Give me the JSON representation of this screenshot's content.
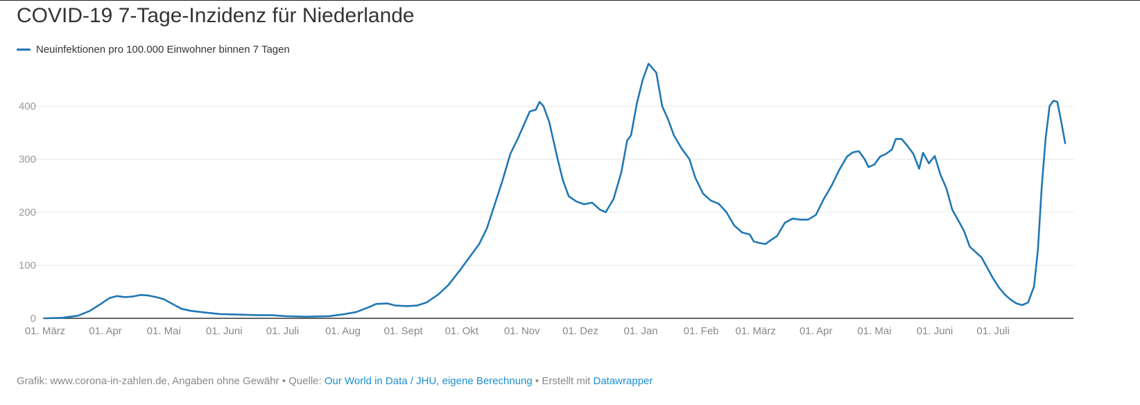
{
  "chart_data": {
    "type": "line",
    "title": "COVID-19 7-Tage-Inzidenz für Niederlande",
    "legend_placement": "top-left",
    "grid": true,
    "x_range": [
      "2020-03-01",
      "2021-07-28"
    ],
    "ylim": [
      0,
      480
    ],
    "y_ticks": [
      0,
      100,
      200,
      300,
      400
    ],
    "x_ticks": [
      {
        "date": "2020-03-01",
        "label": "01. März"
      },
      {
        "date": "2020-04-01",
        "label": "01. Apr"
      },
      {
        "date": "2020-05-01",
        "label": "01. Mai"
      },
      {
        "date": "2020-06-01",
        "label": "01. Juni"
      },
      {
        "date": "2020-07-01",
        "label": "01. Juli"
      },
      {
        "date": "2020-08-01",
        "label": "01. Aug"
      },
      {
        "date": "2020-09-01",
        "label": "01. Sept"
      },
      {
        "date": "2020-10-01",
        "label": "01. Okt"
      },
      {
        "date": "2020-11-01",
        "label": "01. Nov"
      },
      {
        "date": "2020-12-01",
        "label": "01. Dez"
      },
      {
        "date": "2021-01-01",
        "label": "01. Jan"
      },
      {
        "date": "2021-02-01",
        "label": "01. Feb"
      },
      {
        "date": "2021-03-01",
        "label": "01. März"
      },
      {
        "date": "2021-04-01",
        "label": "01. Apr"
      },
      {
        "date": "2021-05-01",
        "label": "01. Mai"
      },
      {
        "date": "2021-06-01",
        "label": "01. Juni"
      },
      {
        "date": "2021-07-01",
        "label": "01. Juli"
      }
    ],
    "series": [
      {
        "name": "Neuinfektionen pro 100.000 Einwohner binnen 7 Tagen",
        "color": "#1f77b4",
        "points": [
          [
            "2020-03-01",
            0
          ],
          [
            "2020-03-10",
            1
          ],
          [
            "2020-03-18",
            5
          ],
          [
            "2020-03-24",
            14
          ],
          [
            "2020-03-30",
            28
          ],
          [
            "2020-04-03",
            38
          ],
          [
            "2020-04-07",
            42
          ],
          [
            "2020-04-11",
            40
          ],
          [
            "2020-04-15",
            41
          ],
          [
            "2020-04-19",
            44
          ],
          [
            "2020-04-23",
            43
          ],
          [
            "2020-04-27",
            40
          ],
          [
            "2020-05-01",
            36
          ],
          [
            "2020-05-05",
            28
          ],
          [
            "2020-05-10",
            18
          ],
          [
            "2020-05-15",
            14
          ],
          [
            "2020-05-22",
            11
          ],
          [
            "2020-05-30",
            8
          ],
          [
            "2020-06-08",
            7
          ],
          [
            "2020-06-18",
            6
          ],
          [
            "2020-06-25",
            6
          ],
          [
            "2020-07-03",
            4
          ],
          [
            "2020-07-13",
            3
          ],
          [
            "2020-07-25",
            4
          ],
          [
            "2020-08-02",
            8
          ],
          [
            "2020-08-08",
            12
          ],
          [
            "2020-08-15",
            22
          ],
          [
            "2020-08-18",
            27
          ],
          [
            "2020-08-24",
            28
          ],
          [
            "2020-08-28",
            24
          ],
          [
            "2020-09-03",
            23
          ],
          [
            "2020-09-08",
            24
          ],
          [
            "2020-09-13",
            30
          ],
          [
            "2020-09-19",
            45
          ],
          [
            "2020-09-24",
            62
          ],
          [
            "2020-09-30",
            90
          ],
          [
            "2020-10-05",
            115
          ],
          [
            "2020-10-10",
            140
          ],
          [
            "2020-10-14",
            170
          ],
          [
            "2020-10-18",
            215
          ],
          [
            "2020-10-22",
            260
          ],
          [
            "2020-10-26",
            310
          ],
          [
            "2020-10-30",
            340
          ],
          [
            "2020-11-02",
            365
          ],
          [
            "2020-11-05",
            390
          ],
          [
            "2020-11-08",
            393
          ],
          [
            "2020-11-10",
            408
          ],
          [
            "2020-11-12",
            400
          ],
          [
            "2020-11-15",
            370
          ],
          [
            "2020-11-19",
            305
          ],
          [
            "2020-11-22",
            260
          ],
          [
            "2020-11-25",
            230
          ],
          [
            "2020-11-29",
            220
          ],
          [
            "2020-12-03",
            215
          ],
          [
            "2020-12-07",
            218
          ],
          [
            "2020-12-11",
            205
          ],
          [
            "2020-12-14",
            200
          ],
          [
            "2020-12-18",
            225
          ],
          [
            "2020-12-22",
            275
          ],
          [
            "2020-12-25",
            335
          ],
          [
            "2020-12-27",
            345
          ],
          [
            "2020-12-30",
            405
          ],
          [
            "2021-01-02",
            450
          ],
          [
            "2021-01-05",
            480
          ],
          [
            "2021-01-09",
            463
          ],
          [
            "2021-01-12",
            400
          ],
          [
            "2021-01-15",
            375
          ],
          [
            "2021-01-18",
            345
          ],
          [
            "2021-01-22",
            320
          ],
          [
            "2021-01-26",
            300
          ],
          [
            "2021-01-29",
            265
          ],
          [
            "2021-02-02",
            235
          ],
          [
            "2021-02-06",
            222
          ],
          [
            "2021-02-10",
            216
          ],
          [
            "2021-02-14",
            200
          ],
          [
            "2021-02-18",
            175
          ],
          [
            "2021-02-22",
            162
          ],
          [
            "2021-02-26",
            158
          ],
          [
            "2021-02-28",
            145
          ],
          [
            "2021-03-03",
            142
          ],
          [
            "2021-03-06",
            140
          ],
          [
            "2021-03-09",
            148
          ],
          [
            "2021-03-12",
            155
          ],
          [
            "2021-03-16",
            180
          ],
          [
            "2021-03-20",
            188
          ],
          [
            "2021-03-24",
            186
          ],
          [
            "2021-03-28",
            186
          ],
          [
            "2021-04-01",
            195
          ],
          [
            "2021-04-05",
            225
          ],
          [
            "2021-04-09",
            250
          ],
          [
            "2021-04-13",
            280
          ],
          [
            "2021-04-17",
            305
          ],
          [
            "2021-04-20",
            313
          ],
          [
            "2021-04-23",
            315
          ],
          [
            "2021-04-26",
            300
          ],
          [
            "2021-04-28",
            285
          ],
          [
            "2021-05-01",
            290
          ],
          [
            "2021-05-04",
            305
          ],
          [
            "2021-05-07",
            310
          ],
          [
            "2021-05-10",
            318
          ],
          [
            "2021-05-12",
            338
          ],
          [
            "2021-05-15",
            338
          ],
          [
            "2021-05-18",
            325
          ],
          [
            "2021-05-21",
            310
          ],
          [
            "2021-05-24",
            282
          ],
          [
            "2021-05-26",
            312
          ],
          [
            "2021-05-29",
            292
          ],
          [
            "2021-06-01",
            306
          ],
          [
            "2021-06-04",
            270
          ],
          [
            "2021-06-07",
            245
          ],
          [
            "2021-06-10",
            205
          ],
          [
            "2021-06-13",
            185
          ],
          [
            "2021-06-16",
            165
          ],
          [
            "2021-06-19",
            135
          ],
          [
            "2021-06-22",
            125
          ],
          [
            "2021-06-25",
            115
          ],
          [
            "2021-06-28",
            95
          ],
          [
            "2021-07-01",
            75
          ],
          [
            "2021-07-04",
            58
          ],
          [
            "2021-07-07",
            45
          ],
          [
            "2021-07-10",
            35
          ],
          [
            "2021-07-13",
            28
          ],
          [
            "2021-07-16",
            25
          ],
          [
            "2021-07-19",
            30
          ],
          [
            "2021-07-22",
            60
          ],
          [
            "2021-07-24",
            130
          ],
          [
            "2021-07-26",
            250
          ],
          [
            "2021-07-28",
            340
          ],
          [
            "2021-07-30",
            400
          ],
          [
            "2021-08-01",
            410
          ],
          [
            "2021-08-03",
            408
          ],
          [
            "2021-08-05",
            370
          ],
          [
            "2021-08-07",
            330
          ]
        ]
      }
    ]
  },
  "footer": {
    "prefix": "Grafik: www.corona-in-zahlen.de, Angaben ohne Gewähr • Quelle: ",
    "source_link": "Our World in Data / JHU, eigene Berechnung",
    "middle": " • Erstellt mit ",
    "tool_link": "Datawrapper"
  }
}
